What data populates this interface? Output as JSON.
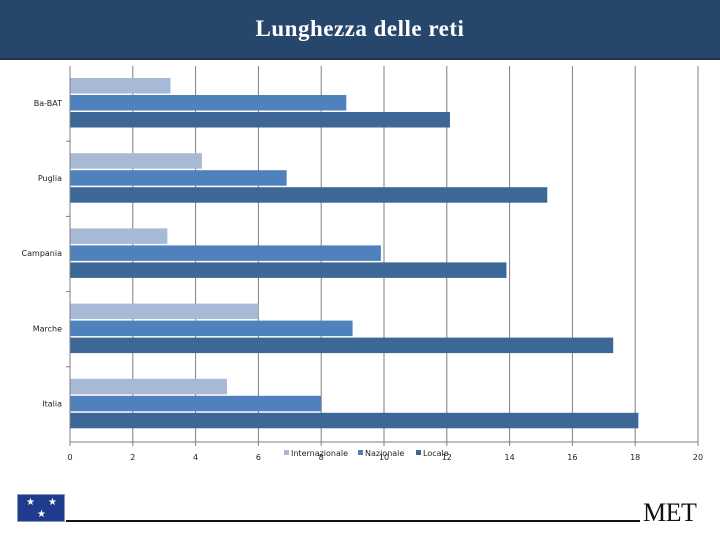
{
  "chart_data": {
    "type": "bar",
    "orientation": "horizontal",
    "title": "Lunghezza delle reti",
    "categories": [
      "Ba-BAT",
      "Puglia",
      "Campania",
      "Marche",
      "Italia"
    ],
    "series": [
      {
        "name": "Internazionale",
        "color": "#a8b9d6",
        "values": [
          3.2,
          4.2,
          3.1,
          6.0,
          5.0
        ]
      },
      {
        "name": "Nazionale",
        "color": "#4f81bd",
        "values": [
          8.8,
          6.9,
          9.9,
          9.0,
          8.0
        ]
      },
      {
        "name": "Locale",
        "color": "#3d6796",
        "values": [
          12.1,
          15.2,
          13.9,
          17.3,
          18.1
        ]
      }
    ],
    "xlim": [
      0,
      20
    ],
    "xticks": [
      "0",
      "2",
      "4",
      "6",
      "8",
      "10",
      "12",
      "14",
      "16",
      "18",
      "20"
    ],
    "grid": true,
    "legend": "bottom"
  },
  "footer": {
    "brand": "MET",
    "logo": "eu-flag-icon"
  }
}
